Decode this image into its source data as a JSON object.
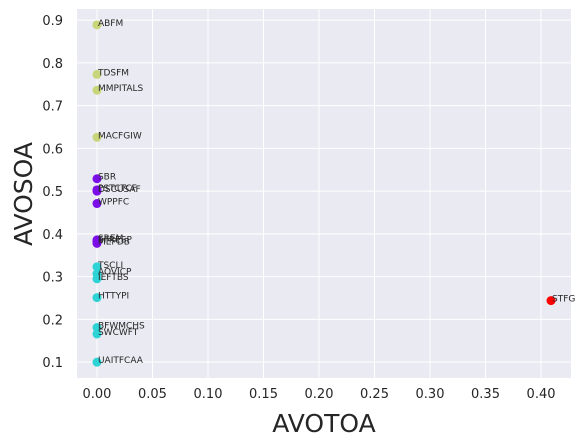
{
  "chart_data": {
    "type": "scatter",
    "title": "",
    "xlabel": "AVOTOA",
    "ylabel": "AVOSOA",
    "xlim": [
      -0.018,
      0.427
    ],
    "ylim": [
      0.063,
      0.926
    ],
    "x_ticks": [
      0.0,
      0.05,
      0.1,
      0.15,
      0.2,
      0.25,
      0.3,
      0.35,
      0.4
    ],
    "x_tick_labels": [
      "0.00",
      "0.05",
      "0.10",
      "0.15",
      "0.20",
      "0.25",
      "0.30",
      "0.35",
      "0.40"
    ],
    "y_ticks": [
      0.1,
      0.2,
      0.3,
      0.4,
      0.5,
      0.6,
      0.7,
      0.8,
      0.9
    ],
    "y_tick_labels": [
      "0.1",
      "0.2",
      "0.3",
      "0.4",
      "0.5",
      "0.6",
      "0.7",
      "0.8",
      "0.9"
    ],
    "grid": true,
    "legend": "none",
    "background_color": "#eaeaf2",
    "grid_color": "#ffffff",
    "colors": {
      "olive": "#c8d57a",
      "purple": "#7b0ee8",
      "cyan": "#2ed3d6",
      "red": "#ff0000"
    },
    "points": [
      {
        "label": "ABFM",
        "x": 0.0,
        "y": 0.889,
        "color": "#c8d57a"
      },
      {
        "label": "TDSFM",
        "x": 0.0,
        "y": 0.773,
        "color": "#c8d57a"
      },
      {
        "label": "MMPITALS",
        "x": 0.0,
        "y": 0.736,
        "color": "#c8d57a"
      },
      {
        "label": "MACFGIW",
        "x": 0.0,
        "y": 0.626,
        "color": "#c8d57a"
      },
      {
        "label": "SBR",
        "x": 0.0,
        "y": 0.529,
        "color": "#7b0ee8"
      },
      {
        "label": "PSTCTCF",
        "x": 0.0,
        "y": 0.503,
        "color": "#7b0ee8"
      },
      {
        "label": "DSCUSAF",
        "x": 0.0,
        "y": 0.5,
        "color": "#7b0ee8"
      },
      {
        "label": "WPPFC",
        "x": 0.0,
        "y": 0.471,
        "color": "#7b0ee8"
      },
      {
        "label": "SREM",
        "x": 0.0,
        "y": 0.386,
        "color": "#7b0ee8"
      },
      {
        "label": "SFRESP",
        "x": 0.0,
        "y": 0.382,
        "color": "#7b0ee8"
      },
      {
        "label": "MEPDB",
        "x": 0.0,
        "y": 0.378,
        "color": "#7b0ee8"
      },
      {
        "label": "TSCLI",
        "x": 0.0,
        "y": 0.323,
        "color": "#2ed3d6"
      },
      {
        "label": "AOVICP",
        "x": 0.0,
        "y": 0.307,
        "color": "#2ed3d6"
      },
      {
        "label": "IEFTBS",
        "x": 0.0,
        "y": 0.295,
        "color": "#2ed3d6"
      },
      {
        "label": "HTTYPI",
        "x": 0.0,
        "y": 0.251,
        "color": "#2ed3d6"
      },
      {
        "label": "BFWMCHS",
        "x": 0.0,
        "y": 0.181,
        "color": "#2ed3d6"
      },
      {
        "label": "SWCWFT",
        "x": 0.0,
        "y": 0.166,
        "color": "#2ed3d6"
      },
      {
        "label": "UAITFCAA",
        "x": 0.0,
        "y": 0.1,
        "color": "#2ed3d6"
      },
      {
        "label": "STFG",
        "x": 0.409,
        "y": 0.244,
        "color": "#ff0000"
      }
    ]
  }
}
